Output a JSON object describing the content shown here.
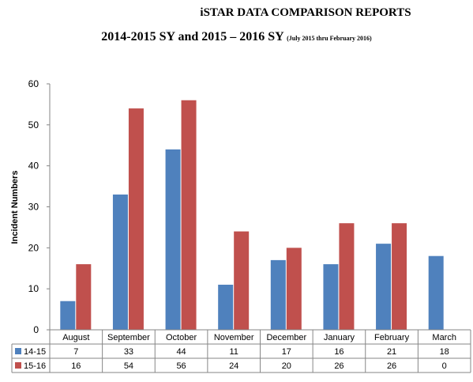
{
  "header": {
    "title": "iSTAR DATA COMPARISON REPORTS",
    "subtitle_main": "2014-2015 SY and 2015 – 2016 SY",
    "subtitle_note": "(July 2015 thru February 2016)"
  },
  "chart_data": {
    "type": "bar",
    "ylabel": "Incident Numbers",
    "xlabel": "",
    "ylim": [
      0,
      60
    ],
    "yticks": [
      0,
      10,
      20,
      30,
      40,
      50,
      60
    ],
    "grid": false,
    "legend": "data-table-below",
    "categories": [
      "August",
      "September",
      "October",
      "November",
      "December",
      "January",
      "February",
      "March"
    ],
    "series": [
      {
        "name": "14-15",
        "color": "#4f81bd",
        "values": [
          7,
          33,
          44,
          11,
          17,
          16,
          21,
          18
        ]
      },
      {
        "name": "15-16",
        "color": "#c0504d",
        "values": [
          16,
          54,
          56,
          24,
          20,
          26,
          26,
          0
        ]
      }
    ],
    "table_values": [
      [
        "7",
        "33",
        "44",
        "11",
        "17",
        "16",
        "21",
        "18"
      ],
      [
        "16",
        "54",
        "56",
        "24",
        "20",
        "26",
        "26",
        "0"
      ]
    ]
  }
}
